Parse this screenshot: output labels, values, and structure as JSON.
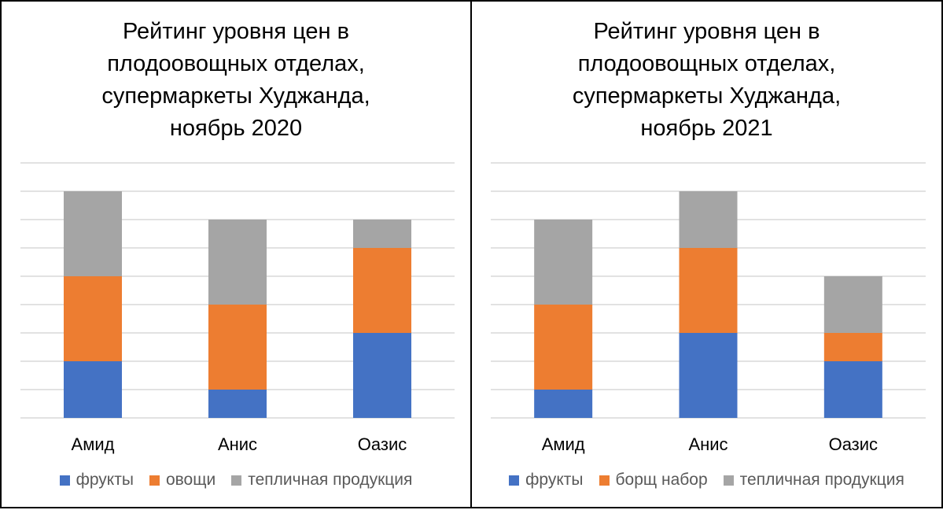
{
  "chart_data": [
    {
      "type": "bar",
      "stacked": true,
      "title": "Рейтинг уровня цен в плодоовощных отделах, супермаркеты Худжанда, ноябрь 2020",
      "title_lines": [
        "Рейтинг уровня цен в",
        "плодоовощных отделах,",
        "супермаркеты Худжанда,",
        "ноябрь 2020"
      ],
      "categories": [
        "Амид",
        "Анис",
        "Оазис"
      ],
      "series": [
        {
          "name": "фрукты",
          "color": "#4472C4",
          "values": [
            2,
            1,
            3
          ]
        },
        {
          "name": "овощи",
          "color": "#ED7D31",
          "values": [
            3,
            3,
            3
          ]
        },
        {
          "name": "тепличная продукция",
          "color": "#A5A5A5",
          "values": [
            3,
            3,
            1
          ]
        }
      ],
      "ylim": [
        0,
        9
      ],
      "grid": true,
      "legend_position": "bottom"
    },
    {
      "type": "bar",
      "stacked": true,
      "title": "Рейтинг уровня цен в плодоовощных отделах, супермаркеты Худжанда, ноябрь 2021",
      "title_lines": [
        "Рейтинг уровня цен в",
        "плодоовощных отделах,",
        "супермаркеты Худжанда,",
        "ноябрь 2021"
      ],
      "categories": [
        "Амид",
        "Анис",
        "Оазис"
      ],
      "series": [
        {
          "name": "фрукты",
          "color": "#4472C4",
          "values": [
            1,
            3,
            2
          ]
        },
        {
          "name": "борщ набор",
          "color": "#ED7D31",
          "values": [
            3,
            3,
            1
          ]
        },
        {
          "name": "тепличная продукция",
          "color": "#A5A5A5",
          "values": [
            3,
            2,
            2
          ]
        }
      ],
      "ylim": [
        0,
        9
      ],
      "grid": true,
      "legend_position": "bottom"
    }
  ]
}
